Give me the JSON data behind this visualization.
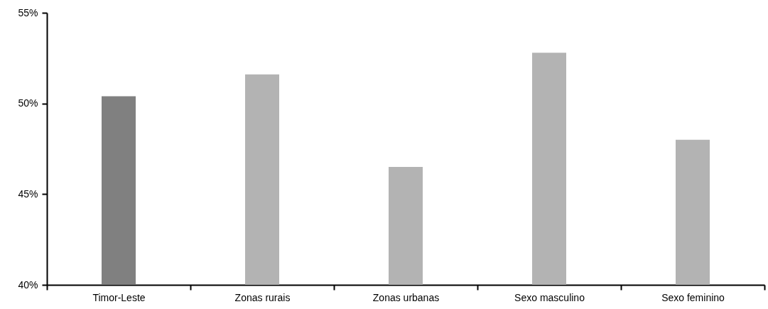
{
  "chart_data": {
    "type": "bar",
    "categories": [
      "Timor-Leste",
      "Zonas rurais",
      "Zonas urbanas",
      "Sexo masculino",
      "Sexo feminino"
    ],
    "values": [
      50.4,
      51.6,
      46.5,
      52.8,
      48.0
    ],
    "colors": [
      "#808080",
      "#b3b3b3",
      "#b3b3b3",
      "#b3b3b3",
      "#b3b3b3"
    ],
    "ylim": [
      40,
      55
    ],
    "yticks": [
      {
        "value": 40,
        "label": "40%"
      },
      {
        "value": 45,
        "label": "45%"
      },
      {
        "value": 50,
        "label": "50%"
      },
      {
        "value": 55,
        "label": "55%"
      }
    ],
    "grid": false
  }
}
